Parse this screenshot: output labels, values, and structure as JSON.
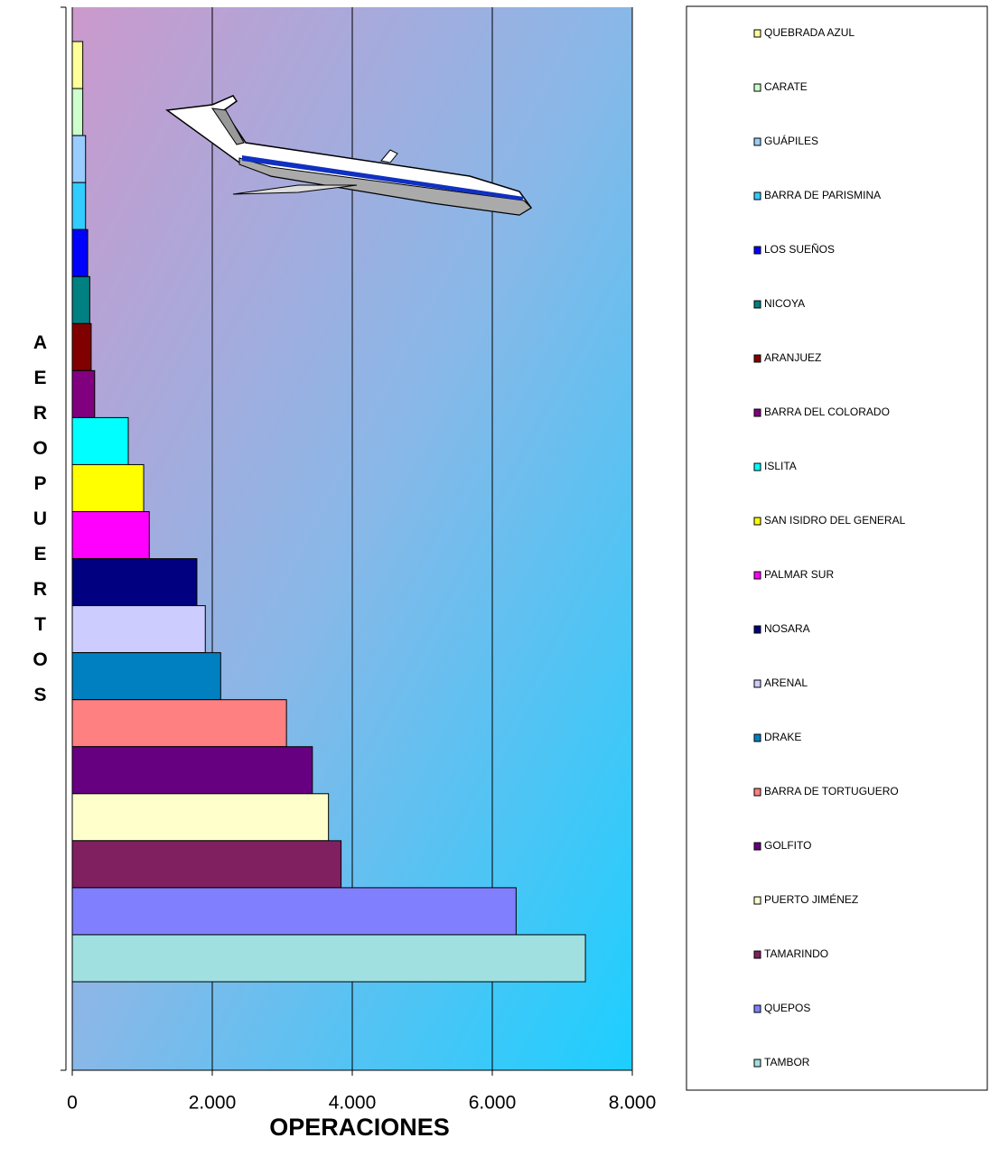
{
  "chart_data": {
    "type": "bar",
    "orientation": "horizontal",
    "x_label": "OPERACIONES",
    "y_label": "AEROPUERTOS",
    "categories": [
      "QUEBRADA AZUL",
      "CARATE",
      "GUÁPILES",
      "BARRA DE PARISMINA",
      "LOS SUEÑOS",
      "NICOYA",
      "ARANJUEZ",
      "BARRA DEL COLORADO",
      "ISLITA",
      "SAN ISIDRO DEL GENERAL",
      "PALMAR SUR",
      "NOSARA",
      "ARENAL",
      "DRAKE",
      "BARRA DE TORTUGUERO",
      "GOLFITO",
      "PUERTO JIMÉNEZ",
      "TAMARINDO",
      "QUEPOS",
      "TAMBOR"
    ],
    "values": [
      150,
      150,
      190,
      190,
      220,
      250,
      270,
      320,
      800,
      1020,
      1100,
      1780,
      1900,
      2120,
      3060,
      3430,
      3660,
      3840,
      6340,
      7330
    ],
    "colors": [
      "#ffff99",
      "#ccffcc",
      "#99ccff",
      "#33ccff",
      "#0000ff",
      "#008080",
      "#800000",
      "#800080",
      "#00ffff",
      "#ffff00",
      "#ff00ff",
      "#000080",
      "#ccccff",
      "#0080c0",
      "#ff8080",
      "#660080",
      "#ffffcc",
      "#802060",
      "#8080ff",
      "#a0e0e0"
    ],
    "xlim": [
      0,
      8000
    ],
    "xticks": [
      0,
      {
        "value": 2000,
        "label": "2.000"
      },
      {
        "value": 4000,
        "label": "4.000"
      },
      {
        "value": 6000,
        "label": "6.000"
      },
      {
        "value": 8000,
        "label": "8.000"
      }
    ],
    "grid": true
  }
}
